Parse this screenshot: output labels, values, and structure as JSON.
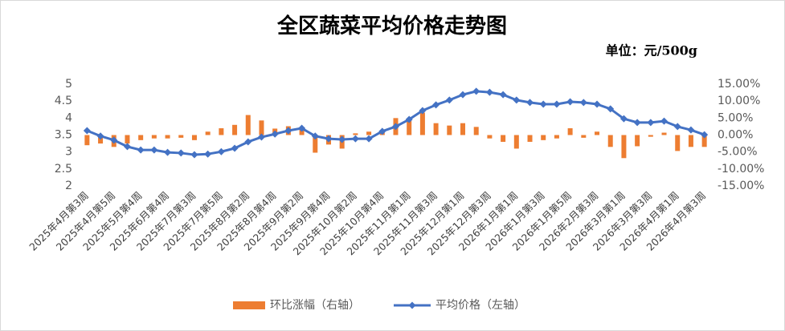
{
  "chart_data": {
    "type": "bar-line",
    "title": "全区蔬菜平均价格走势图",
    "unit": "单位：元/500g",
    "categories": [
      "2025年4月第3周",
      null,
      "2025年4月第5周",
      null,
      "2025年5月第4周",
      null,
      "2025年6月第4周",
      null,
      "2025年7月第3周",
      null,
      "2025年7月第5周",
      null,
      "2025年8月第2周",
      null,
      "2025年8月第4周",
      null,
      "2025年9月第2周",
      null,
      "2025年9月第4周",
      null,
      "2025年10月第2周",
      null,
      "2025年10月第4周",
      null,
      "2025年11月第1周",
      null,
      "2025年11月第3周",
      null,
      "2025年12月第1周",
      null,
      "2025年12月第3周",
      null,
      "2026年1月第1周",
      null,
      "2026年1月第3周",
      null,
      "2026年1月第5周",
      null,
      "2026年2月第3周",
      null,
      "2026年3月第1周",
      null,
      "2026年3月第3周",
      null,
      "2026年4月第1周",
      null,
      "2026年4月第3周"
    ],
    "series": [
      {
        "name": "环比涨幅（右轴）",
        "kind": "bar",
        "axis": "y2",
        "color": "#ED7D31",
        "values": [
          -3.0,
          -2.5,
          -3.5,
          -2.5,
          -1.5,
          -1.0,
          -1.0,
          -0.8,
          -1.5,
          1.0,
          2.0,
          3.0,
          5.9,
          4.3,
          1.9,
          2.6,
          1.9,
          -5.2,
          -2.8,
          -4.0,
          0.5,
          1.0,
          1.0,
          5.0,
          4.3,
          6.6,
          3.5,
          2.8,
          3.5,
          2.4,
          -1.0,
          -2.0,
          -4.0,
          -2.0,
          -1.5,
          -1.0,
          2.0,
          -0.8,
          1.0,
          -3.5,
          -6.8,
          -3.3,
          -0.5,
          0.7,
          -4.7,
          -3.5,
          -3.5
        ]
      },
      {
        "name": "平均价格（左轴）",
        "kind": "line",
        "color": "#4472C4",
        "values": [
          3.63,
          3.47,
          3.35,
          3.16,
          3.06,
          3.06,
          2.99,
          2.97,
          2.92,
          2.94,
          3.01,
          3.11,
          3.3,
          3.44,
          3.53,
          3.63,
          3.7,
          3.47,
          3.39,
          3.37,
          3.39,
          3.39,
          3.61,
          3.75,
          3.96,
          4.22,
          4.39,
          4.53,
          4.69,
          4.79,
          4.76,
          4.69,
          4.53,
          4.46,
          4.41,
          4.41,
          4.48,
          4.46,
          4.41,
          4.27,
          3.98,
          3.87,
          3.87,
          3.91,
          3.75,
          3.65,
          3.51
        ]
      }
    ],
    "ylim": [
      2,
      5
    ],
    "yticks": [
      2,
      2.5,
      3,
      3.5,
      4,
      4.5,
      5
    ],
    "y2lim": [
      -15,
      15
    ],
    "y2ticks": [
      {
        "value": -15,
        "label": "-15.00%"
      },
      {
        "value": -10,
        "label": "-10.00%"
      },
      {
        "value": -5,
        "label": "-5.00%"
      },
      {
        "value": 0,
        "label": "0.00%"
      },
      {
        "value": 5,
        "label": "5.00%"
      },
      {
        "value": 10,
        "label": "10.00%"
      },
      {
        "value": 15,
        "label": "15.00%"
      }
    ],
    "legend": "bottom"
  }
}
